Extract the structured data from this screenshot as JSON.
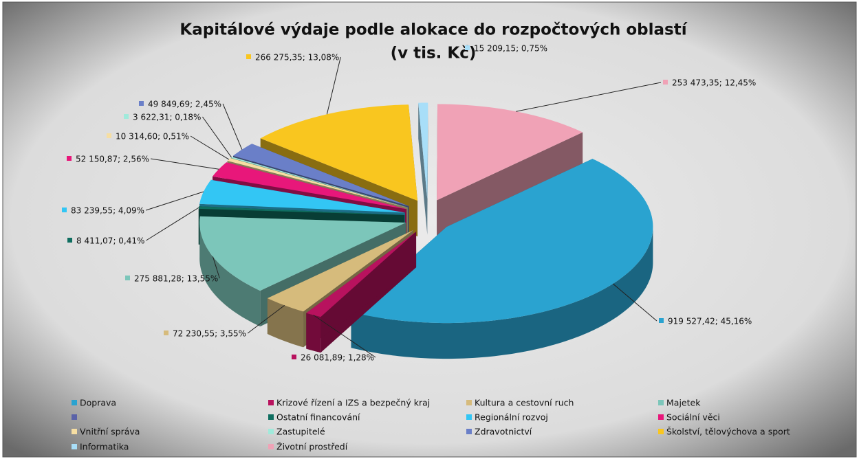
{
  "chart_data": {
    "type": "pie3d",
    "title": "Kapitálové výdaje podle alokace do rozpočtových oblastí",
    "subtitle": "(v tis. Kč)",
    "categories": [
      "Doprava",
      "Krizové řízení a IZS a bezpečný kraj",
      "Kultura a cestovní ruch",
      "Majetek",
      null,
      "Ostatní financování",
      "Regionální rozvoj",
      "Sociální věci",
      "Vnitřní správa",
      "Zastupitelé",
      "Zdravotnictví",
      "Školství, tělovýchova a sport",
      "Informatika",
      "Životní prostředí"
    ],
    "values": [
      919527.42,
      26081.89,
      72230.55,
      275881.28,
      null,
      8411.07,
      83239.55,
      52150.87,
      10314.6,
      3622.31,
      49849.69,
      266275.35,
      15209.15,
      253473.35
    ],
    "value_labels": [
      "919 527,42; 45,16%",
      "26 081,89; 1,28%",
      "72 230,55; 3,55%",
      "275 881,28; 13,55%",
      null,
      "8 411,07; 0,41%",
      "83 239,55; 4,09%",
      "52 150,87; 2,56%",
      "10 314,60; 0,51%",
      "3 622,31; 0,18%",
      "49 849,69; 2,45%",
      "266 275,35; 13,08%",
      "15 209,15; 0,75%",
      "253 473,35; 12,45%"
    ],
    "colors": [
      "#2aa3d0",
      "#b8125e",
      "#d6bb7c",
      "#7cc6ba",
      "#5a62a8",
      "#0f6e60",
      "#33c6f4",
      "#e8177a",
      "#f6dea2",
      "#a0eadb",
      "#6a7fc8",
      "#f9c61f",
      "#a8def8",
      "#f0a2b6"
    ],
    "legend": "bottom"
  }
}
